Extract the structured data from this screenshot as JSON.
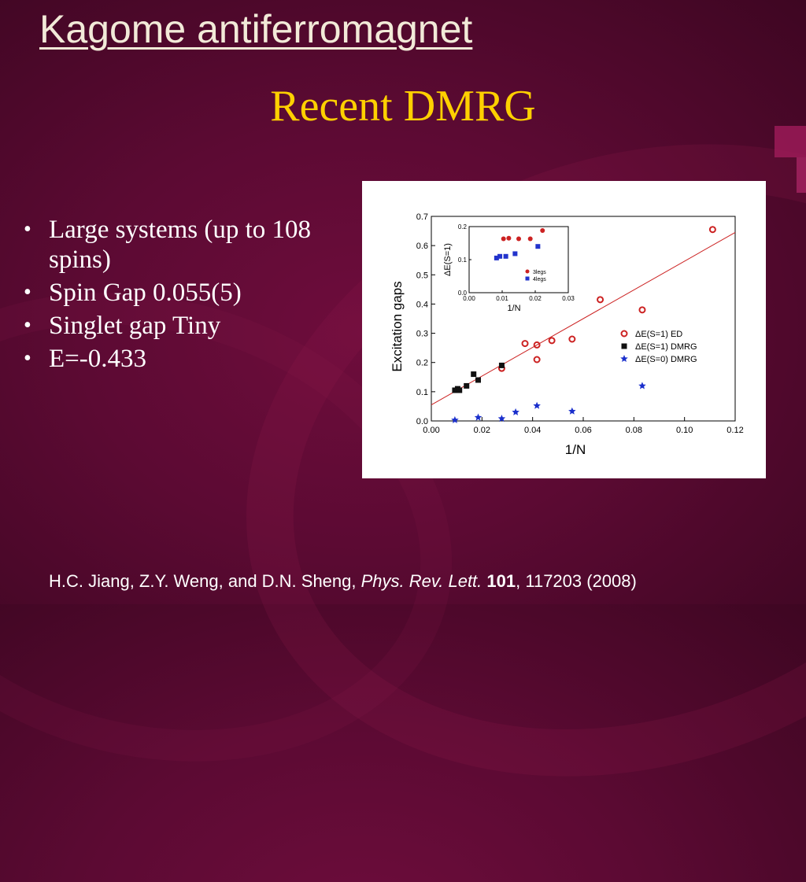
{
  "slide": {
    "title": "Kagome antiferromagnet",
    "subtitle": "Recent DMRG",
    "bullets": [
      "Large systems (up to 108 spins)",
      "Spin Gap 0.055(5)",
      "Singlet gap Tiny",
      "E=-0.433"
    ],
    "bullet_char": "•",
    "citation": {
      "authors": "H.C. Jiang, Z.Y. Weng, and D.N. Sheng, ",
      "journal": "Phys. Rev. Lett.",
      "volume": "101",
      "rest": ", 117203 (2008)"
    }
  },
  "chart_data": [
    {
      "type": "scatter",
      "title": "",
      "xlabel": "1/N",
      "ylabel": "Excitation gaps",
      "xlim": [
        0.0,
        0.12
      ],
      "ylim": [
        0.0,
        0.7
      ],
      "xticks": [
        "0.00",
        "0.02",
        "0.04",
        "0.06",
        "0.08",
        "0.10",
        "0.12"
      ],
      "yticks": [
        "0.0",
        "0.1",
        "0.2",
        "0.3",
        "0.4",
        "0.5",
        "0.6",
        "0.7"
      ],
      "legend_position": "right",
      "series": [
        {
          "name": "ΔE(S=1) ED",
          "marker": "open-circle",
          "color": "#cc2222",
          "x": [
            0.0278,
            0.037,
            0.0417,
            0.0417,
            0.0476,
            0.0556,
            0.0667,
            0.0833,
            0.1111
          ],
          "y": [
            0.18,
            0.265,
            0.26,
            0.21,
            0.275,
            0.28,
            0.415,
            0.38,
            0.655
          ]
        },
        {
          "name": "ΔE(S=1) DMRG",
          "marker": "filled-square",
          "color": "#111111",
          "x": [
            0.0093,
            0.0104,
            0.0111,
            0.0139,
            0.0167,
            0.0185,
            0.0278
          ],
          "y": [
            0.105,
            0.11,
            0.105,
            0.12,
            0.16,
            0.14,
            0.19
          ]
        },
        {
          "name": "ΔE(S=0) DMRG",
          "marker": "star",
          "color": "#1a2fcc",
          "x": [
            0.0093,
            0.0185,
            0.0278,
            0.0333,
            0.0417,
            0.0556,
            0.0833
          ],
          "y": [
            0.003,
            0.012,
            0.008,
            0.03,
            0.052,
            0.033,
            0.12
          ]
        }
      ],
      "fit_line": {
        "color": "#cc2222",
        "x": [
          0.0,
          0.12
        ],
        "y": [
          0.055,
          0.645
        ]
      }
    },
    {
      "type": "scatter",
      "title": "",
      "xlabel": "1/N",
      "ylabel": "ΔE(S=1)",
      "xlim": [
        0.0,
        0.03
      ],
      "ylim": [
        0.0,
        0.2
      ],
      "xticks": [
        "0.00",
        "0.01",
        "0.02",
        "0.03"
      ],
      "yticks": [
        "0.0",
        "0.1",
        "0.2"
      ],
      "legend_position": "bottom-right",
      "series": [
        {
          "name": "3legs",
          "marker": "filled-circle",
          "color": "#cc2222",
          "x": [
            0.0104,
            0.012,
            0.015,
            0.0185,
            0.0222
          ],
          "y": [
            0.163,
            0.165,
            0.163,
            0.163,
            0.188
          ]
        },
        {
          "name": "4legs",
          "marker": "filled-square",
          "color": "#2233cc",
          "x": [
            0.0083,
            0.0093,
            0.0111,
            0.0139,
            0.0208
          ],
          "y": [
            0.105,
            0.11,
            0.11,
            0.118,
            0.14
          ]
        }
      ]
    }
  ]
}
